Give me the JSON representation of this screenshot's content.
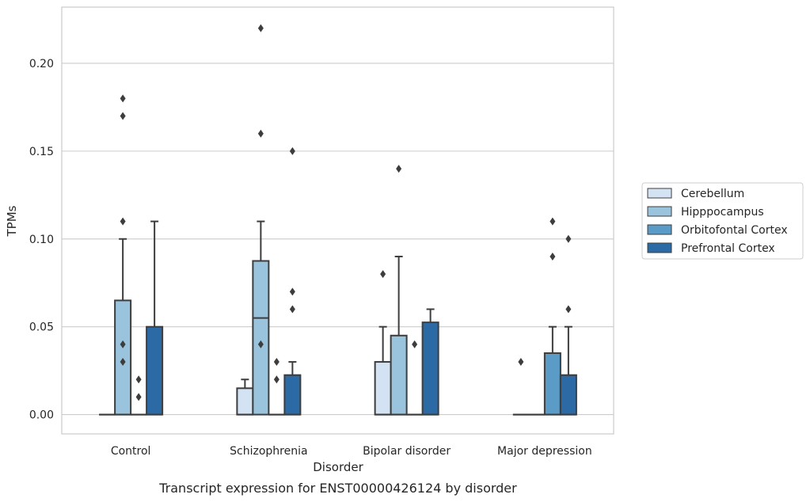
{
  "caption": "Transcript expression for ENST00000426124 by disorder",
  "chart_data": {
    "type": "box",
    "title": "",
    "xlabel": "Disorder",
    "ylabel": "TPMs",
    "ylim": [
      -0.011,
      0.232
    ],
    "yticks": [
      0.0,
      0.05,
      0.1,
      0.15,
      0.2
    ],
    "ytick_labels": [
      "0.00",
      "0.05",
      "0.10",
      "0.15",
      "0.20"
    ],
    "grid": "horizontal",
    "legend_position": "right",
    "categories": [
      "Control",
      "Schizophrenia",
      "Bipolar disorder",
      "Major depression"
    ],
    "series": [
      {
        "name": "Cerebellum",
        "color": "#d3e3f3",
        "boxes": [
          {
            "q1": 0,
            "median": 0,
            "q3": 0,
            "whisker_low": 0,
            "whisker_high": 0,
            "outliers": []
          },
          {
            "q1": 0,
            "median": 0,
            "q3": 0.015,
            "whisker_low": 0,
            "whisker_high": 0.02,
            "outliers": []
          },
          {
            "q1": 0,
            "median": 0,
            "q3": 0.03,
            "whisker_low": 0,
            "whisker_high": 0.05,
            "outliers": [
              0.08
            ]
          },
          {
            "q1": 0,
            "median": 0,
            "q3": 0,
            "whisker_low": 0,
            "whisker_high": 0,
            "outliers": [
              0.03
            ]
          }
        ]
      },
      {
        "name": "Hipppocampus",
        "color": "#9ac4dd",
        "boxes": [
          {
            "q1": 0,
            "median": 0,
            "q3": 0.065,
            "whisker_low": 0,
            "whisker_high": 0.1,
            "outliers": [
              0.11,
              0.04,
              0.03,
              0.17,
              0.18
            ]
          },
          {
            "q1": 0,
            "median": 0.055,
            "q3": 0.0875,
            "whisker_low": 0,
            "whisker_high": 0.11,
            "outliers": [
              0.16,
              0.04,
              0.22
            ]
          },
          {
            "q1": 0,
            "median": 0,
            "q3": 0.045,
            "whisker_low": 0,
            "whisker_high": 0.09,
            "outliers": [
              0.14
            ]
          },
          {
            "q1": 0,
            "median": 0,
            "q3": 0,
            "whisker_low": 0,
            "whisker_high": 0,
            "outliers": []
          }
        ]
      },
      {
        "name": "Orbitofontal Cortex",
        "color": "#5a9bc8",
        "boxes": [
          {
            "q1": 0,
            "median": 0,
            "q3": 0,
            "whisker_low": 0,
            "whisker_high": 0,
            "outliers": [
              0.02,
              0.01
            ]
          },
          {
            "q1": 0,
            "median": 0,
            "q3": 0,
            "whisker_low": 0,
            "whisker_high": 0,
            "outliers": [
              0.03,
              0.02
            ]
          },
          {
            "q1": 0,
            "median": 0,
            "q3": 0,
            "whisker_low": 0,
            "whisker_high": 0,
            "outliers": [
              0.04
            ]
          },
          {
            "q1": 0,
            "median": 0,
            "q3": 0.035,
            "whisker_low": 0,
            "whisker_high": 0.05,
            "outliers": [
              0.09,
              0.11
            ]
          }
        ]
      },
      {
        "name": "Prefrontal Cortex",
        "color": "#2c6aa6",
        "boxes": [
          {
            "q1": 0,
            "median": 0,
            "q3": 0.05,
            "whisker_low": 0,
            "whisker_high": 0.11,
            "outliers": []
          },
          {
            "q1": 0,
            "median": 0,
            "q3": 0.0225,
            "whisker_low": 0,
            "whisker_high": 0.03,
            "outliers": [
              0.15,
              0.07,
              0.06
            ]
          },
          {
            "q1": 0,
            "median": 0,
            "q3": 0.0525,
            "whisker_low": 0,
            "whisker_high": 0.06,
            "outliers": []
          },
          {
            "q1": 0,
            "median": 0,
            "q3": 0.0225,
            "whisker_low": 0,
            "whisker_high": 0.05,
            "outliers": [
              0.1,
              0.06
            ]
          }
        ]
      }
    ]
  }
}
